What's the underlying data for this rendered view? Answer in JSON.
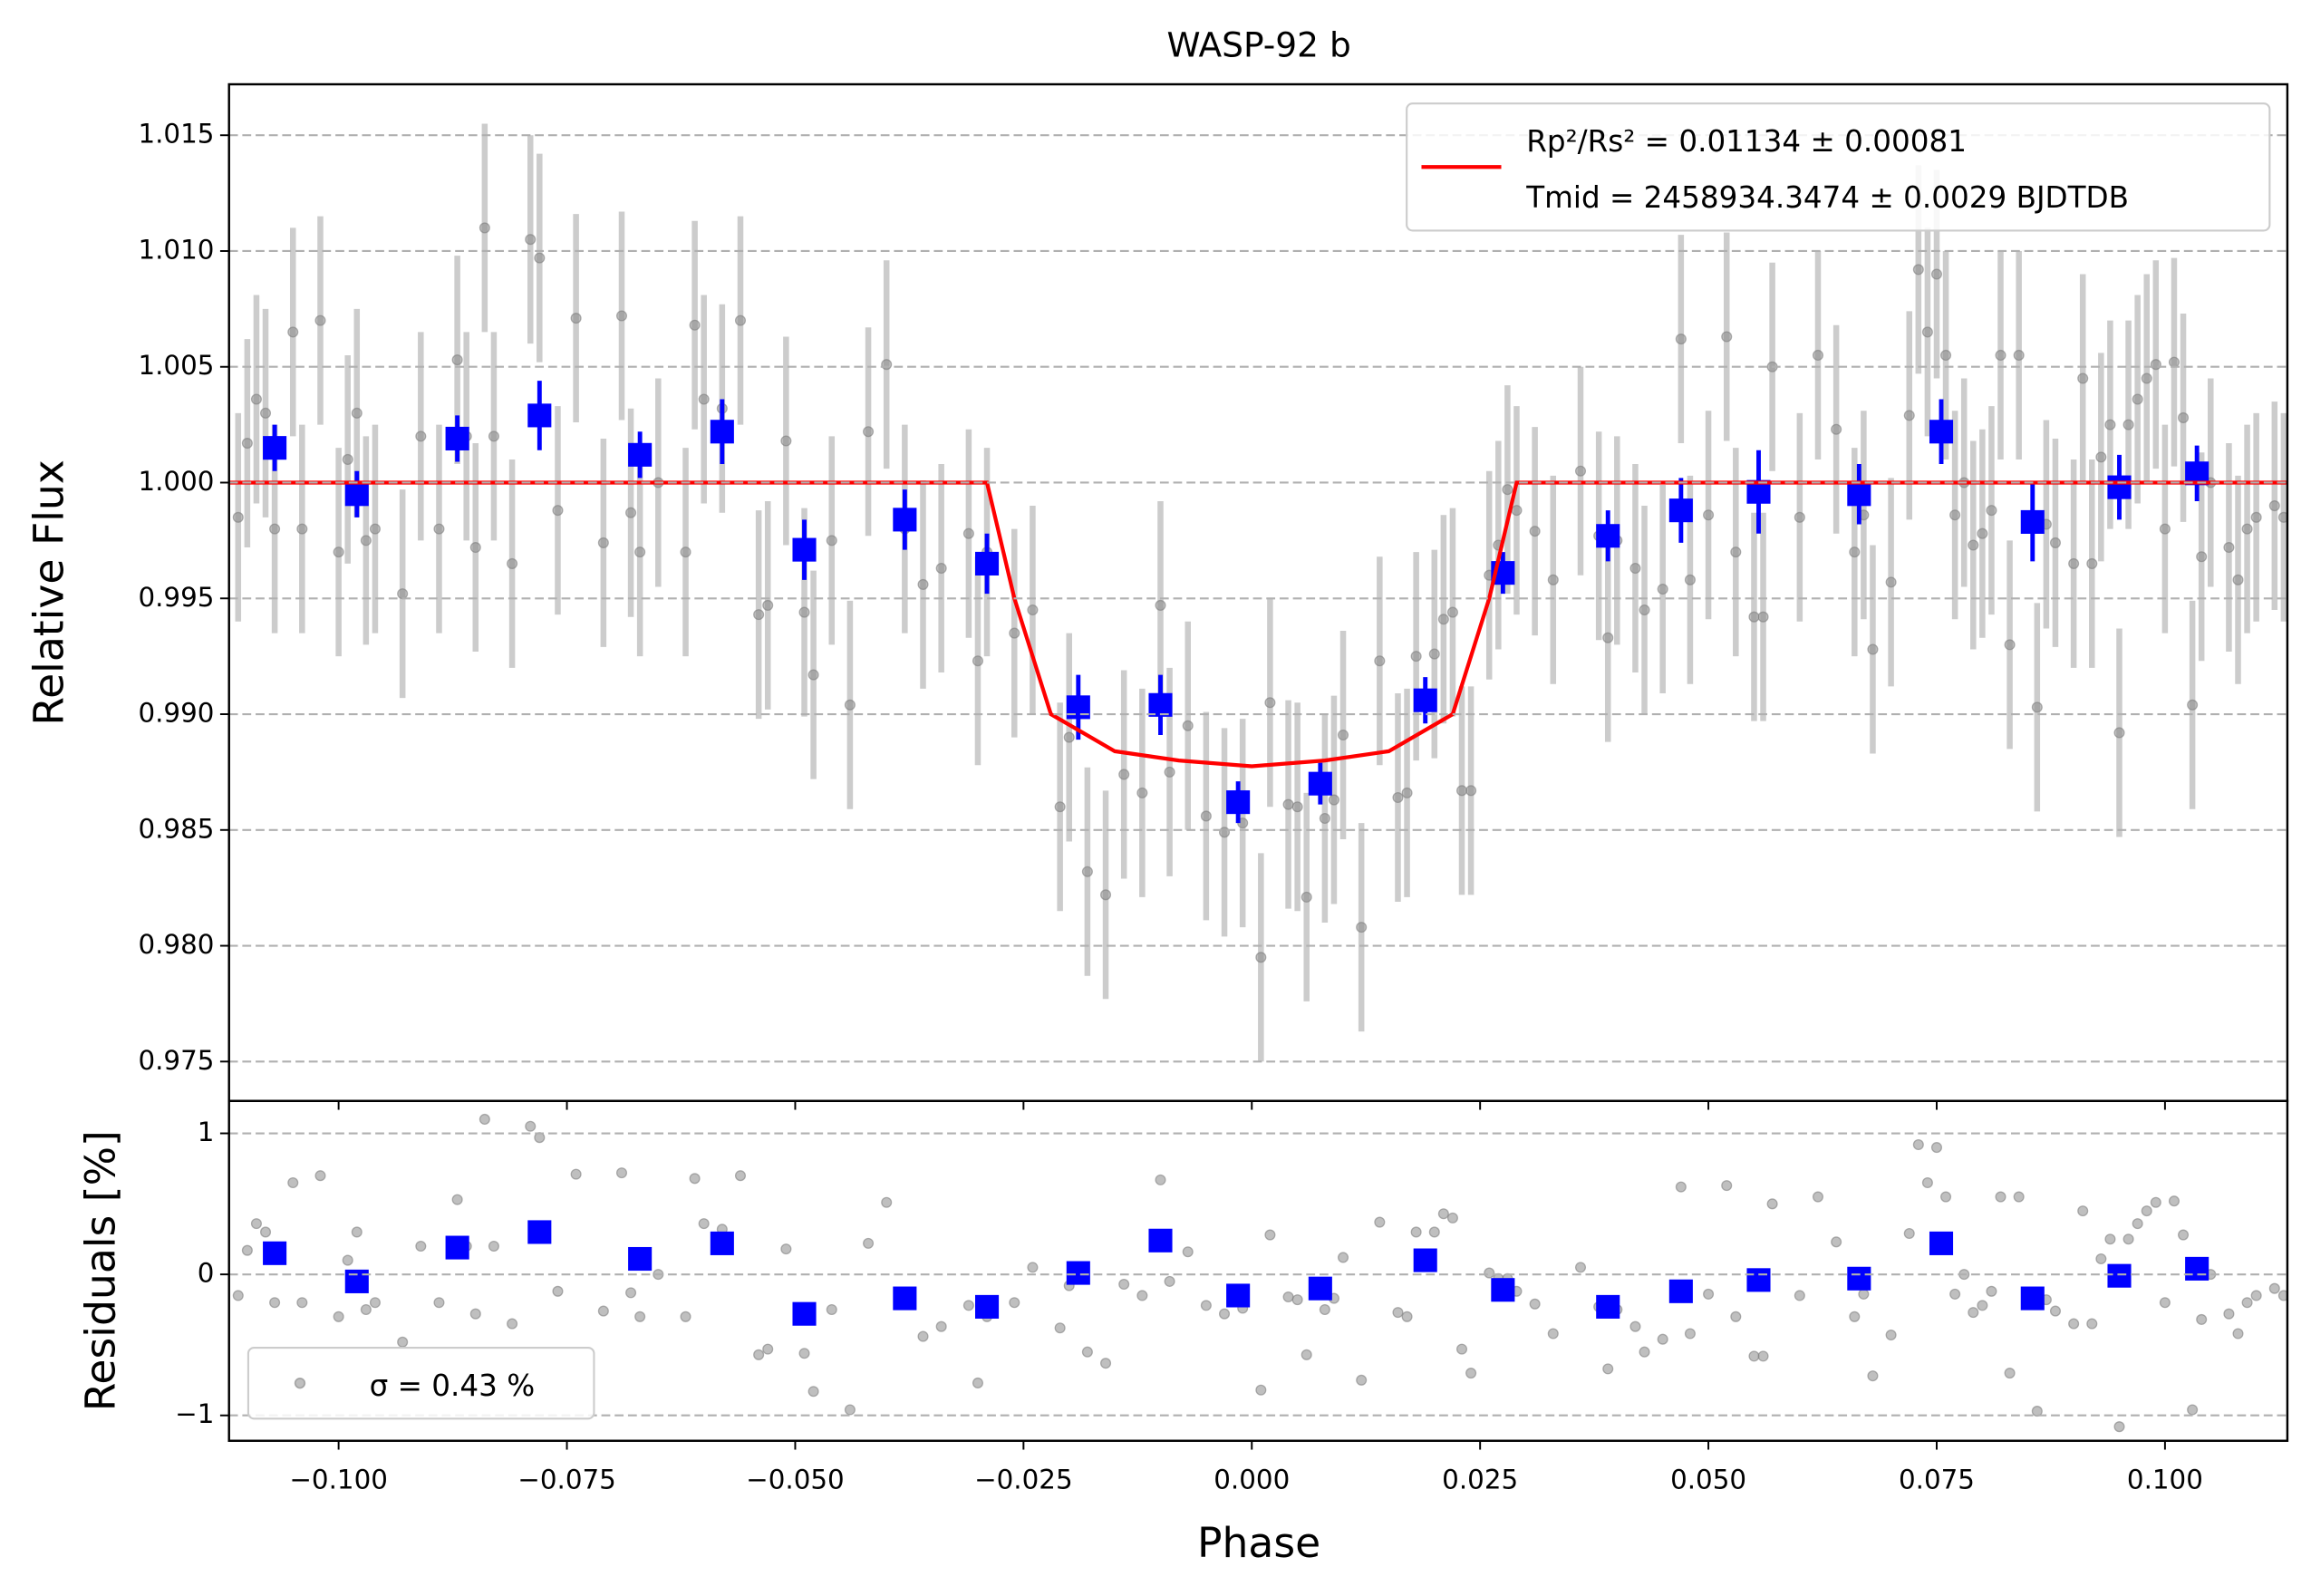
{
  "chart_data": [
    {
      "type": "scatter",
      "title": "WASP-92 b",
      "ylabel": "Relative Flux",
      "xlim": [
        -0.112,
        0.1134
      ],
      "ylim": [
        0.9733,
        1.0172
      ],
      "grid": true,
      "legend": "upper right",
      "yticks": [
        0.975,
        {
          "value": 0.98,
          "label": "0.980"
        },
        0.985,
        {
          "value": 0.99,
          "label": "0.990"
        },
        0.995,
        {
          "value": 1.0,
          "label": "1.000"
        },
        1.005,
        {
          "value": 1.01,
          "label": "1.010"
        },
        1.015
      ],
      "series": [
        {
          "marker": "circle",
          "color": "#808080",
          "ecolor": "#cccccc",
          "error": 0.0045,
          "x": [
            -0.111,
            -0.11,
            -0.109,
            -0.108,
            -0.107,
            -0.105,
            -0.104,
            -0.102,
            -0.1,
            -0.099,
            -0.098,
            -0.097,
            -0.096,
            -0.093,
            -0.091,
            -0.089,
            -0.087,
            -0.086,
            -0.085,
            -0.084,
            -0.083,
            -0.081,
            -0.079,
            -0.078,
            -0.076,
            -0.074,
            -0.071,
            -0.069,
            -0.068,
            -0.067,
            -0.065,
            -0.062,
            -0.061,
            -0.06,
            -0.058,
            -0.056,
            -0.054,
            -0.053,
            -0.051,
            -0.049,
            -0.048,
            -0.046,
            -0.044,
            -0.042,
            -0.04,
            -0.038,
            -0.036,
            -0.034,
            -0.031,
            -0.03,
            -0.029,
            -0.026,
            -0.024,
            -0.021,
            -0.02,
            -0.018,
            -0.016,
            -0.014,
            -0.012,
            -0.01,
            -0.009,
            -0.007,
            -0.005,
            -0.003,
            -0.001,
            0.001,
            0.002,
            0.004,
            0.005,
            0.006,
            0.008,
            0.009,
            0.01,
            0.012,
            0.014,
            0.016,
            0.017,
            0.018,
            0.02,
            0.021,
            0.022,
            0.023,
            0.024,
            0.026,
            0.027,
            0.028,
            0.029,
            0.031,
            0.033,
            0.036,
            0.038,
            0.039,
            0.04,
            0.042,
            0.043,
            0.045,
            0.047,
            0.048,
            0.05,
            0.052,
            0.053,
            0.055,
            0.056,
            0.057,
            0.06,
            0.062,
            0.064,
            0.066,
            0.067,
            0.068,
            0.07,
            0.072,
            0.073,
            0.074,
            0.075,
            0.076,
            0.077,
            0.078,
            0.079,
            0.08,
            0.081,
            0.082,
            0.083,
            0.084,
            0.086,
            0.087,
            0.088,
            0.09,
            0.091,
            0.092,
            0.093,
            0.094,
            0.095,
            0.096,
            0.097,
            0.098,
            0.099,
            0.1,
            0.101,
            0.102,
            0.103,
            0.104,
            0.105,
            0.107,
            0.108,
            0.109,
            0.11,
            0.112,
            0.113
          ],
          "values": [
            0.9985,
            1.0017,
            1.0036,
            1.003,
            0.998,
            1.0065,
            0.998,
            1.007,
            0.997,
            1.001,
            1.003,
            0.9975,
            0.998,
            0.9952,
            1.002,
            0.998,
            1.0053,
            1.002,
            0.9972,
            1.011,
            1.002,
            0.9965,
            1.0105,
            1.0097,
            0.9988,
            1.0071,
            0.9974,
            1.0072,
            0.9987,
            0.997,
            1.0,
            0.997,
            1.0068,
            1.0036,
            1.0032,
            1.007,
            0.9943,
            0.9947,
            1.0018,
            0.9944,
            0.9917,
            0.9975,
            0.9904,
            1.0022,
            1.0051,
            0.998,
            0.9956,
            0.9963,
            0.9978,
            0.9923,
            0.997,
            0.9935,
            0.9945,
            0.986,
            0.989,
            0.9832,
            0.9822,
            0.9874,
            0.9866,
            0.9947,
            0.9875,
            0.9895,
            0.9856,
            0.9849,
            0.9853,
            0.9795,
            0.9905,
            0.9861,
            0.986,
            0.9821,
            0.9855,
            0.9863,
            0.9891,
            0.9808,
            0.9923,
            0.9864,
            0.9866,
            0.9925,
            0.9926,
            0.9941,
            0.9944,
            0.9867,
            0.9867,
            0.996,
            0.9973,
            0.9997,
            0.9988,
            0.9979,
            0.9958,
            1.0005,
            0.9977,
            0.9933,
            0.9975,
            0.9963,
            0.9945,
            0.9954,
            1.0062,
            0.9958,
            0.9986,
            1.0063,
            0.997,
            0.9942,
            0.9942,
            1.005,
            0.9985,
            1.0055,
            1.0023,
            0.997,
            0.9986,
            0.9928,
            0.9957,
            1.0029,
            1.0092,
            1.0065,
            1.009,
            1.0055,
            0.9986,
            1.0,
            0.9973,
            0.9978,
            0.9988,
            1.0055,
            0.993,
            1.0055,
            0.9903,
            0.9982,
            0.9974,
            0.9965,
            1.0045,
            0.9965,
            1.0011,
            1.0025,
            0.9892,
            1.0025,
            1.0036,
            1.0045,
            1.0051,
            0.998,
            1.0052,
            1.0028,
            0.9904,
            0.9968,
            1.0,
            0.9972,
            0.9958,
            0.998,
            0.9985,
            0.999,
            0.9985
          ]
        },
        {
          "marker": "square",
          "color": "#0000ff",
          "ecolor": "#0000ff",
          "x": [
            -0.107,
            -0.098,
            -0.087,
            -0.078,
            -0.067,
            -0.058,
            -0.049,
            -0.038,
            -0.029,
            -0.019,
            -0.01,
            -0.0015,
            0.0075,
            0.019,
            0.0275,
            0.039,
            0.047,
            0.0555,
            0.0665,
            0.0755,
            0.0855,
            0.095,
            0.1035
          ],
          "values": [
            1.0015,
            0.9995,
            1.0019,
            1.0029,
            1.0012,
            1.0022,
            0.9971,
            0.9984,
            0.9965,
            0.9903,
            0.9904,
            0.9862,
            0.987,
            0.9906,
            0.9961,
            0.9977,
            0.9988,
            0.9996,
            0.9995,
            1.0022,
            0.9983,
            0.9998,
            1.0004
          ],
          "errors": [
            0.001,
            0.001,
            0.001,
            0.0015,
            0.001,
            0.0014,
            0.0013,
            0.0013,
            0.0013,
            0.0014,
            0.0013,
            0.0009,
            0.0009,
            0.001,
            0.0009,
            0.0011,
            0.0014,
            0.0018,
            0.0013,
            0.0014,
            0.0017,
            0.0014,
            0.0012
          ]
        },
        {
          "type": "line",
          "color": "#ff0000",
          "name": [
            "Rp²/Rs² = 0.01134 ± 0.00081",
            "Tmid = 2458934.3474 ± 0.0029 BJDTDB"
          ],
          "x": [
            -0.112,
            -0.029,
            -0.026,
            -0.022,
            -0.015,
            -0.008,
            0.0,
            0.008,
            0.015,
            0.022,
            0.026,
            0.029,
            0.1134
          ],
          "values": [
            1.0,
            1.0,
            0.995,
            0.99,
            0.9884,
            0.988,
            0.98775,
            0.988,
            0.9884,
            0.99,
            0.995,
            1.0,
            1.0
          ]
        }
      ]
    },
    {
      "type": "scatter",
      "xlabel": "Phase",
      "ylabel": "Residuals [%]",
      "xlim": [
        -0.112,
        0.1134
      ],
      "ylim": [
        -1.18,
        1.23
      ],
      "grid": true,
      "legend": "lower left",
      "xticks": [
        {
          "value": -0.1,
          "label": "−0.100"
        },
        {
          "value": -0.075,
          "label": "−0.075"
        },
        {
          "value": -0.05,
          "label": "−0.050"
        },
        {
          "value": -0.025,
          "label": "−0.025"
        },
        {
          "value": 0,
          "label": "0.000"
        },
        {
          "value": 0.025,
          "label": "0.025"
        },
        {
          "value": 0.05,
          "label": "0.050"
        },
        {
          "value": 0.075,
          "label": "0.075"
        },
        {
          "value": 0.1,
          "label": "0.100"
        }
      ],
      "yticks": [
        {
          "value": -1,
          "label": "−1"
        },
        0,
        1
      ],
      "series": [
        {
          "marker": "circle",
          "color": "#808080",
          "name": "σ = 0.43 %",
          "x": [
            -0.111,
            -0.11,
            -0.109,
            -0.108,
            -0.107,
            -0.105,
            -0.104,
            -0.102,
            -0.1,
            -0.099,
            -0.098,
            -0.097,
            -0.096,
            -0.093,
            -0.091,
            -0.089,
            -0.087,
            -0.086,
            -0.085,
            -0.084,
            -0.083,
            -0.081,
            -0.079,
            -0.078,
            -0.076,
            -0.074,
            -0.071,
            -0.069,
            -0.068,
            -0.067,
            -0.065,
            -0.062,
            -0.061,
            -0.06,
            -0.058,
            -0.056,
            -0.054,
            -0.053,
            -0.051,
            -0.049,
            -0.048,
            -0.046,
            -0.044,
            -0.042,
            -0.04,
            -0.038,
            -0.036,
            -0.034,
            -0.031,
            -0.03,
            -0.029,
            -0.026,
            -0.024,
            -0.021,
            -0.02,
            -0.018,
            -0.016,
            -0.014,
            -0.012,
            -0.01,
            -0.009,
            -0.007,
            -0.005,
            -0.003,
            -0.001,
            0.001,
            0.002,
            0.004,
            0.005,
            0.006,
            0.008,
            0.009,
            0.01,
            0.012,
            0.014,
            0.016,
            0.017,
            0.018,
            0.02,
            0.021,
            0.022,
            0.023,
            0.024,
            0.026,
            0.027,
            0.028,
            0.029,
            0.031,
            0.033,
            0.036,
            0.038,
            0.039,
            0.04,
            0.042,
            0.043,
            0.045,
            0.047,
            0.048,
            0.05,
            0.052,
            0.053,
            0.055,
            0.056,
            0.057,
            0.06,
            0.062,
            0.064,
            0.066,
            0.067,
            0.068,
            0.07,
            0.072,
            0.073,
            0.074,
            0.075,
            0.076,
            0.077,
            0.078,
            0.079,
            0.08,
            0.081,
            0.082,
            0.083,
            0.084,
            0.086,
            0.087,
            0.088,
            0.09,
            0.091,
            0.092,
            0.093,
            0.094,
            0.095,
            0.096,
            0.097,
            0.098,
            0.099,
            0.1,
            0.101,
            0.102,
            0.103,
            0.104,
            0.105,
            0.107,
            0.108,
            0.109,
            0.11,
            0.112,
            0.113
          ],
          "values": [
            -0.15,
            0.17,
            0.36,
            0.3,
            -0.2,
            0.65,
            -0.2,
            0.7,
            -0.3,
            0.1,
            0.3,
            -0.25,
            -0.2,
            -0.48,
            0.2,
            -0.2,
            0.53,
            0.2,
            -0.28,
            1.1,
            0.2,
            -0.35,
            1.05,
            0.97,
            -0.12,
            0.71,
            -0.26,
            0.72,
            -0.13,
            -0.3,
            0.0,
            -0.3,
            0.68,
            0.36,
            0.32,
            0.7,
            -0.57,
            -0.53,
            0.18,
            -0.56,
            -0.83,
            -0.25,
            -0.96,
            0.22,
            0.51,
            -0.2,
            -0.44,
            -0.37,
            -0.22,
            -0.77,
            -0.3,
            -0.2,
            0.05,
            -0.38,
            -0.08,
            -0.55,
            -0.63,
            -0.07,
            -0.15,
            0.67,
            -0.05,
            0.16,
            -0.22,
            -0.28,
            -0.24,
            -0.82,
            0.28,
            -0.16,
            -0.18,
            -0.57,
            -0.25,
            -0.17,
            0.12,
            -0.75,
            0.37,
            -0.27,
            -0.3,
            0.3,
            0.3,
            0.43,
            0.4,
            -0.53,
            -0.7,
            0.01,
            -0.03,
            -0.03,
            -0.12,
            -0.21,
            -0.42,
            0.05,
            -0.23,
            -0.67,
            -0.25,
            -0.37,
            -0.55,
            -0.46,
            0.62,
            -0.42,
            -0.14,
            0.63,
            -0.3,
            -0.58,
            -0.58,
            0.5,
            -0.15,
            0.55,
            0.23,
            -0.3,
            -0.14,
            -0.72,
            -0.43,
            0.29,
            0.92,
            0.65,
            0.9,
            0.55,
            -0.14,
            0.0,
            -0.27,
            -0.22,
            -0.12,
            0.55,
            -0.7,
            0.55,
            -0.97,
            -0.18,
            -0.26,
            -0.35,
            0.45,
            -0.35,
            0.11,
            0.25,
            -1.08,
            0.25,
            0.36,
            0.45,
            0.51,
            -0.2,
            0.52,
            0.28,
            -0.96,
            -0.32,
            0.0,
            -0.28,
            -0.42,
            -0.2,
            -0.15,
            -0.1,
            -0.15
          ]
        },
        {
          "marker": "square",
          "color": "#0000ff",
          "x": [
            -0.107,
            -0.098,
            -0.087,
            -0.078,
            -0.067,
            -0.058,
            -0.049,
            -0.038,
            -0.029,
            -0.019,
            -0.01,
            -0.0015,
            0.0075,
            0.019,
            0.0275,
            0.039,
            0.047,
            0.0555,
            0.0665,
            0.0755,
            0.0855,
            0.095,
            0.1035
          ],
          "values": [
            0.15,
            -0.05,
            0.19,
            0.3,
            0.11,
            0.22,
            -0.28,
            -0.17,
            -0.23,
            0.01,
            0.24,
            -0.15,
            -0.1,
            0.1,
            -0.11,
            -0.23,
            -0.12,
            -0.04,
            -0.03,
            0.22,
            -0.17,
            -0.01,
            0.04
          ]
        }
      ]
    }
  ]
}
